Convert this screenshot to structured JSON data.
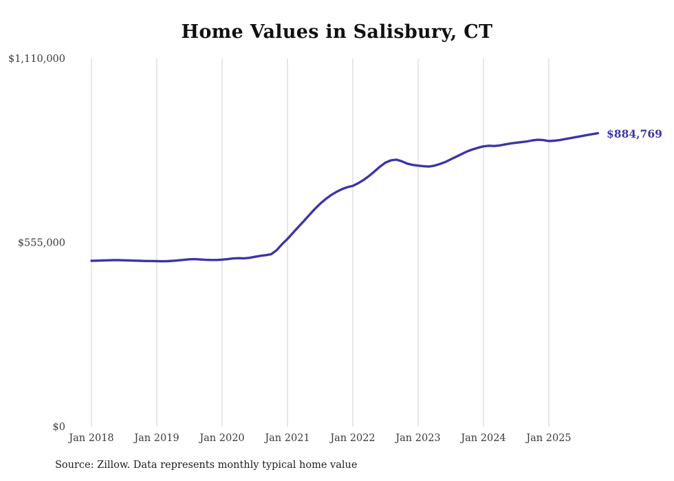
{
  "end_label": "$884,769",
  "source_note": "Source: Zillow. Data represents monthly typical home value",
  "colors": {
    "line": "#3a35a8",
    "grid": "#cccccc",
    "axis_text": "#3a3a3a",
    "title_text": "#101010",
    "background": "#ffffff"
  },
  "chart_data": {
    "type": "line",
    "title": "Home Values in Salisbury, CT",
    "xlabel": "",
    "ylabel": "",
    "unit": "USD",
    "ylim": [
      0,
      1110000
    ],
    "grid": "vertical-only",
    "legend_position": "none",
    "final_value": 884769,
    "final_value_label": "$884,769",
    "x_tick_labels": [
      "Jan 2018",
      "Jan 2019",
      "Jan 2020",
      "Jan 2021",
      "Jan 2022",
      "Jan 2023",
      "Jan 2024",
      "Jan 2025"
    ],
    "y_ticks": [
      {
        "value": 0,
        "label": "$0"
      },
      {
        "value": 555000,
        "label": "$555,000"
      },
      {
        "value": 1110000,
        "label": "$1,110,000"
      }
    ],
    "x_interval": "month",
    "x": [
      "2018-01",
      "2018-02",
      "2018-03",
      "2018-04",
      "2018-05",
      "2018-06",
      "2018-07",
      "2018-08",
      "2018-09",
      "2018-10",
      "2018-11",
      "2018-12",
      "2019-01",
      "2019-02",
      "2019-03",
      "2019-04",
      "2019-05",
      "2019-06",
      "2019-07",
      "2019-08",
      "2019-09",
      "2019-10",
      "2019-11",
      "2019-12",
      "2020-01",
      "2020-02",
      "2020-03",
      "2020-04",
      "2020-05",
      "2020-06",
      "2020-07",
      "2020-08",
      "2020-09",
      "2020-10",
      "2020-11",
      "2020-12",
      "2021-01",
      "2021-02",
      "2021-03",
      "2021-04",
      "2021-05",
      "2021-06",
      "2021-07",
      "2021-08",
      "2021-09",
      "2021-10",
      "2021-11",
      "2021-12",
      "2022-01",
      "2022-02",
      "2022-03",
      "2022-04",
      "2022-05",
      "2022-06",
      "2022-07",
      "2022-08",
      "2022-09",
      "2022-10",
      "2022-11",
      "2022-12",
      "2023-01",
      "2023-02",
      "2023-03",
      "2023-04",
      "2023-05",
      "2023-06",
      "2023-07",
      "2023-08",
      "2023-09",
      "2023-10",
      "2023-11",
      "2023-12",
      "2024-01",
      "2024-02",
      "2024-03",
      "2024-04",
      "2024-05",
      "2024-06",
      "2024-07",
      "2024-08",
      "2024-09",
      "2024-10",
      "2024-11",
      "2024-12",
      "2025-01",
      "2025-02",
      "2025-03",
      "2025-04",
      "2025-05",
      "2025-06",
      "2025-07",
      "2025-08",
      "2025-09",
      "2025-10"
    ],
    "values": [
      500000,
      500500,
      501000,
      501500,
      502000,
      502000,
      501500,
      501000,
      500500,
      500000,
      499500,
      499500,
      499000,
      498500,
      499000,
      500000,
      501500,
      503000,
      504500,
      505000,
      504000,
      503000,
      502500,
      502500,
      503500,
      505000,
      507000,
      508000,
      507500,
      509000,
      512000,
      515000,
      517000,
      520000,
      532000,
      550000,
      566000,
      584000,
      602000,
      620000,
      638000,
      656000,
      672000,
      686000,
      698000,
      708000,
      716000,
      722000,
      726000,
      734000,
      744000,
      756000,
      770000,
      784000,
      796000,
      803000,
      805000,
      800000,
      793000,
      789000,
      787000,
      785000,
      784000,
      787000,
      792000,
      798000,
      806000,
      814000,
      822000,
      830000,
      836000,
      841000,
      845000,
      847000,
      846000,
      848000,
      851000,
      854000,
      856000,
      858000,
      860000,
      863000,
      865000,
      864000,
      861000,
      862000,
      864000,
      867000,
      870000,
      873000,
      876000,
      879000,
      882000,
      884769
    ]
  }
}
